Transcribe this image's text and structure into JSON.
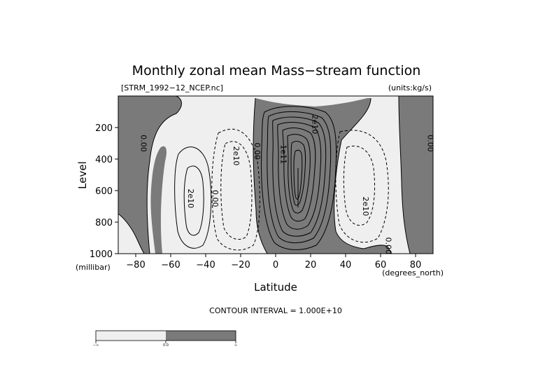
{
  "chart_data": {
    "type": "contour",
    "title": "Monthly zonal mean Mass−stream function",
    "file_label": "[STRM_1992−12_NCEP.nc]",
    "units_label": "(units:kg/s)",
    "xlabel": "Latitude",
    "ylabel": "Level",
    "x_units": "(degrees_north)",
    "y_units": "(millibar)",
    "xlim": [
      -90,
      90
    ],
    "ylim": [
      0,
      1000
    ],
    "y_inverted": true,
    "x_ticks": [
      -80,
      -60,
      -40,
      -20,
      0,
      20,
      40,
      60,
      80
    ],
    "x_tick_labels": [
      "−80",
      "−60",
      "−40",
      "−20",
      "0",
      "20",
      "40",
      "60",
      "80"
    ],
    "y_ticks": [
      200,
      400,
      600,
      800,
      1000
    ],
    "y_tick_labels": [
      "200",
      "400",
      "600",
      "800",
      "1000"
    ],
    "contour_interval_text": "CONTOUR INTERVAL = 1.000E+10",
    "contour_labels": [
      {
        "text": "0.00",
        "x": -77,
        "y": 300
      },
      {
        "text": "2e10",
        "x": -50,
        "y": 650
      },
      {
        "text": "0.00",
        "x": -36,
        "y": 650
      },
      {
        "text": "2e10",
        "x": -24,
        "y": 380
      },
      {
        "text": "0.00",
        "x": -12,
        "y": 350
      },
      {
        "text": "1e11",
        "x": 3,
        "y": 370
      },
      {
        "text": "2e10",
        "x": 21,
        "y": 180
      },
      {
        "text": "2e10",
        "x": 50,
        "y": 700
      },
      {
        "text": "0.00",
        "x": 63,
        "y": 950
      },
      {
        "text": "0.00",
        "x": 87,
        "y": 300
      }
    ],
    "colorbar": {
      "labels": [
        "−∞",
        "0.0",
        "∞"
      ],
      "colors": [
        "#efefef",
        "#7a7a7a"
      ]
    },
    "colors": {
      "positive_fill": "#7a7a7a",
      "negative_fill": "#efefef",
      "line": "#000000"
    }
  }
}
